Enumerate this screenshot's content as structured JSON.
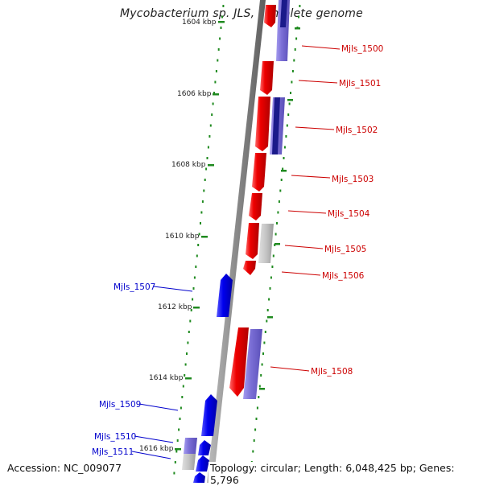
{
  "header": {
    "title": "Mycobacterium sp. JLS, complete genome"
  },
  "footer": {
    "accession": "Accession: NC_009077",
    "summary": "Topology: circular; Length: 6,048,425 bp; Genes: 5,796"
  },
  "ruler_ticks": [
    "1604 kbp",
    "1606 kbp",
    "1608 kbp",
    "1610 kbp",
    "1612 kbp",
    "1614 kbp",
    "1616 kbp"
  ],
  "genes_forward": [
    "Mjls_1500",
    "Mjls_1501",
    "Mjls_1502",
    "Mjls_1503",
    "Mjls_1504",
    "Mjls_1505",
    "Mjls_1506",
    "Mjls_1508"
  ],
  "genes_reverse": [
    "Mjls_1507",
    "Mjls_1509",
    "Mjls_1510",
    "Mjls_1511"
  ],
  "colors": {
    "backbone": "#8a8a8a",
    "forward_gene": "#ee0000",
    "reverse_gene": "#0000ee",
    "protein_feature": "#7b6fd6",
    "protein_feature_dark": "#1a1a8a",
    "pseudo_feature": "#bdbdbd",
    "dots": "#1f8a1f",
    "fwd_label": "#cc0000",
    "rev_label": "#0000cc"
  }
}
